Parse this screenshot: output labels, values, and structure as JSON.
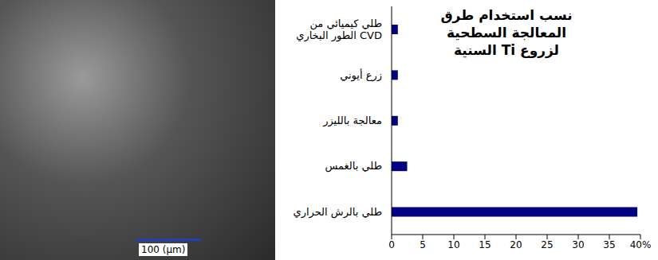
{
  "chart_data": {
    "type": "bar",
    "title": "نسب استخدام طرق المعالجة السطحية لزروع Ti السنية",
    "orientation": "horizontal",
    "categories": [
      "طلي كيميائي من الطور البخاري CVD",
      "زرع أيوني",
      "معالجة بالليزر",
      "طلي بالغمس",
      "طلي بالرش الحراري"
    ],
    "values": [
      1,
      1,
      1,
      2.5,
      39.5
    ],
    "color": "#000080",
    "xlim": [
      0,
      40
    ],
    "xticks": [
      0,
      5,
      10,
      15,
      20,
      25,
      30,
      35,
      {
        "value": 40,
        "label": "40%"
      }
    ],
    "grid": false
  },
  "micrograph": {
    "scale_bar": "100 (µm)"
  }
}
